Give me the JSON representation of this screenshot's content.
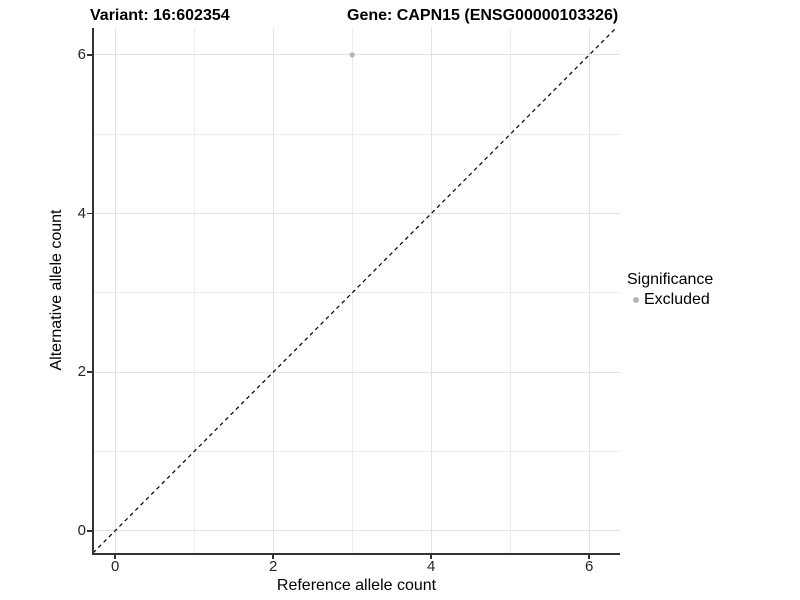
{
  "figure": {
    "title_left": "Variant: 16:602354",
    "title_right": "Gene: CAPN15 (ENSG00000103326)"
  },
  "axes": {
    "x_label": "Reference allele count",
    "y_label": "Alternative allele count"
  },
  "legend": {
    "title": "Significance",
    "items": [
      {
        "label": "Excluded",
        "color": "#b5b5b5"
      }
    ]
  },
  "colors": {
    "point_excluded": "#b5b5b5",
    "gridline_major": "#e2e2e2",
    "gridline_minor": "#ececec",
    "axis_line": "#333333",
    "reference_line": "#000000",
    "text": "#000000"
  },
  "chart_data": {
    "type": "scatter",
    "title": "Variant: 16:602354    Gene: CAPN15 (ENSG00000103326)",
    "xlabel": "Reference allele count",
    "ylabel": "Alternative allele count",
    "xlim": [
      -0.28,
      6.39
    ],
    "ylim": [
      -0.28,
      6.34
    ],
    "x_major_ticks": [
      0,
      2,
      4,
      6
    ],
    "y_major_ticks": [
      0,
      2,
      4,
      6
    ],
    "x_minor_ticks": [
      1,
      3,
      5
    ],
    "y_minor_ticks": [
      1,
      3,
      5
    ],
    "grid": true,
    "legend_position": "right",
    "series": [
      {
        "name": "Excluded",
        "color": "#b5b5b5",
        "points": [
          {
            "x": 3,
            "y": 6
          }
        ]
      }
    ],
    "reference_line": {
      "kind": "abline",
      "slope": 1,
      "intercept": 0,
      "style": "dashed",
      "color": "#000000"
    }
  }
}
